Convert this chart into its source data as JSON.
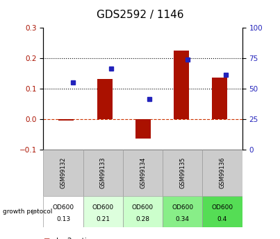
{
  "title": "GDS2592 / 1146",
  "samples": [
    "GSM99132",
    "GSM99133",
    "GSM99134",
    "GSM99135",
    "GSM99136"
  ],
  "log2_ratio": [
    -0.005,
    0.13,
    -0.065,
    0.225,
    0.135
  ],
  "percentile_rank": [
    0.12,
    0.165,
    0.065,
    0.195,
    0.145
  ],
  "protocol_label": "growth protocol",
  "protocol_line1": [
    "OD600",
    "OD600",
    "OD600",
    "OD600",
    "OD600"
  ],
  "protocol_line2": [
    "0.13",
    "0.21",
    "0.28",
    "0.34",
    "0.4"
  ],
  "cell_colors": [
    "#ffffff",
    "#ddffdd",
    "#ccffcc",
    "#88ee88",
    "#55dd55"
  ],
  "ylim_left": [
    -0.1,
    0.3
  ],
  "ylim_right": [
    0,
    100
  ],
  "yticks_left": [
    -0.1,
    0.0,
    0.1,
    0.2,
    0.3
  ],
  "yticks_right": [
    0,
    25,
    50,
    75,
    100
  ],
  "bar_color": "#aa1100",
  "dot_color": "#2222bb",
  "background_color": "#ffffff",
  "title_fontsize": 11,
  "tick_fontsize": 7.5,
  "legend_fontsize": 7.5
}
